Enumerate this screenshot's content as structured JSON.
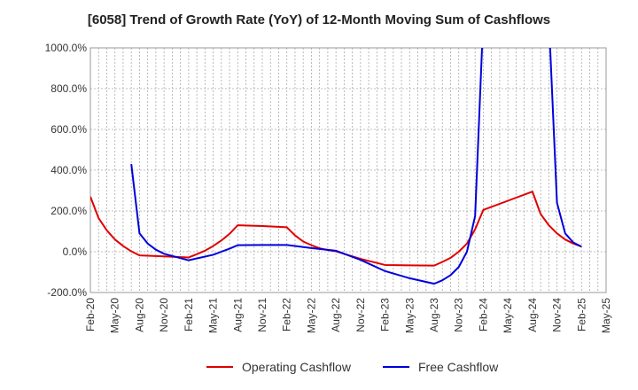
{
  "chart_data": {
    "type": "line",
    "title": "[6058]  Trend of Growth Rate (YoY) of 12-Month Moving Sum of Cashflows",
    "xlabel": "",
    "ylabel": "",
    "ylim": [
      -200,
      1000
    ],
    "y_ticks": [
      -200,
      0,
      200,
      400,
      600,
      800,
      1000
    ],
    "y_tick_labels": [
      "-200.0%",
      "0.0%",
      "200.0%",
      "400.0%",
      "600.0%",
      "800.0%",
      "1000.0%"
    ],
    "x_range": [
      "2020-02",
      "2025-05"
    ],
    "x_tick_labels": [
      "Feb-20",
      "May-20",
      "Aug-20",
      "Nov-20",
      "Feb-21",
      "May-21",
      "Aug-21",
      "Nov-21",
      "Feb-22",
      "May-22",
      "Aug-22",
      "Nov-22",
      "Feb-23",
      "May-23",
      "Aug-23",
      "Nov-23",
      "Feb-24",
      "May-24",
      "Aug-24",
      "Nov-24",
      "Feb-25",
      "May-25"
    ],
    "grid": true,
    "legend_position": "bottom",
    "series": [
      {
        "name": "Operating Cashflow",
        "color": "#e00000",
        "points": [
          [
            "2020-02",
            270
          ],
          [
            "2020-03",
            165
          ],
          [
            "2020-04",
            105
          ],
          [
            "2020-05",
            60
          ],
          [
            "2020-06",
            28
          ],
          [
            "2020-07",
            2
          ],
          [
            "2020-08",
            -18
          ],
          [
            "2020-11",
            -23
          ],
          [
            "2021-02",
            -28
          ],
          [
            "2021-03",
            -12
          ],
          [
            "2021-04",
            5
          ],
          [
            "2021-05",
            28
          ],
          [
            "2021-06",
            55
          ],
          [
            "2021-07",
            88
          ],
          [
            "2021-08",
            130
          ],
          [
            "2021-11",
            126
          ],
          [
            "2022-02",
            120
          ],
          [
            "2022-03",
            80
          ],
          [
            "2022-04",
            50
          ],
          [
            "2022-05",
            32
          ],
          [
            "2022-06",
            17
          ],
          [
            "2022-07",
            8
          ],
          [
            "2022-08",
            2
          ],
          [
            "2022-11",
            -35
          ],
          [
            "2023-02",
            -65
          ],
          [
            "2023-05",
            -67
          ],
          [
            "2023-08",
            -68
          ],
          [
            "2023-09",
            -50
          ],
          [
            "2023-10",
            -30
          ],
          [
            "2023-11",
            0
          ],
          [
            "2023-12",
            40
          ],
          [
            "2024-01",
            110
          ],
          [
            "2024-02",
            205
          ],
          [
            "2024-05",
            250
          ],
          [
            "2024-08",
            295
          ],
          [
            "2024-09",
            185
          ],
          [
            "2024-10",
            130
          ],
          [
            "2024-11",
            90
          ],
          [
            "2024-12",
            60
          ],
          [
            "2025-01",
            40
          ],
          [
            "2025-02",
            25
          ]
        ]
      },
      {
        "name": "Free Cashflow",
        "color": "#0000dd",
        "points": [
          [
            "2020-07",
            430
          ],
          [
            "2020-08",
            90
          ],
          [
            "2020-09",
            40
          ],
          [
            "2020-10",
            10
          ],
          [
            "2020-11",
            -10
          ],
          [
            "2021-02",
            -42
          ],
          [
            "2021-05",
            -15
          ],
          [
            "2021-06",
            0
          ],
          [
            "2021-07",
            15
          ],
          [
            "2021-08",
            32
          ],
          [
            "2021-11",
            33
          ],
          [
            "2022-02",
            33
          ],
          [
            "2022-05",
            18
          ],
          [
            "2022-08",
            5
          ],
          [
            "2022-11",
            -40
          ],
          [
            "2023-02",
            -95
          ],
          [
            "2023-05",
            -130
          ],
          [
            "2023-08",
            -157
          ],
          [
            "2023-09",
            -140
          ],
          [
            "2023-10",
            -115
          ],
          [
            "2023-11",
            -75
          ],
          [
            "2023-12",
            0
          ],
          [
            "2024-01",
            175
          ],
          [
            "2024-02",
            1150
          ],
          [
            "2024-10",
            1150
          ],
          [
            "2024-11",
            240
          ],
          [
            "2024-12",
            90
          ],
          [
            "2025-01",
            45
          ],
          [
            "2025-02",
            25
          ]
        ]
      }
    ]
  }
}
